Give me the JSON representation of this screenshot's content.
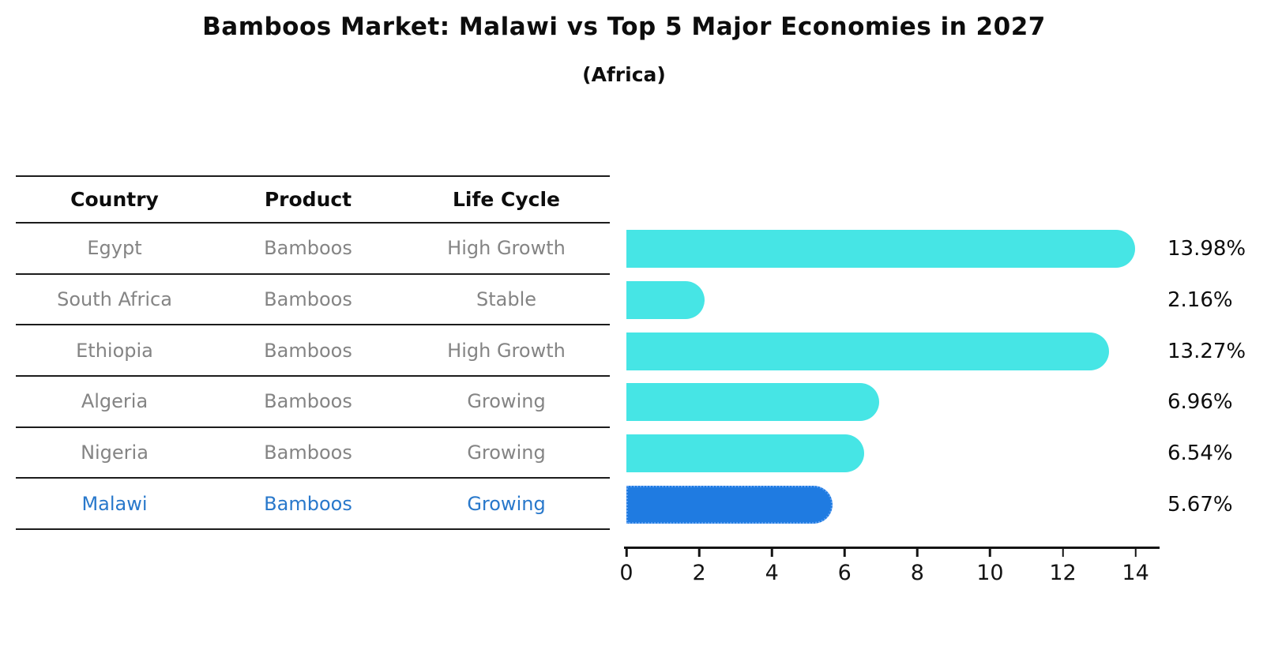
{
  "title": "Bamboos Market: Malawi vs Top 5 Major Economies in 2027",
  "subtitle": "(Africa)",
  "table": {
    "headers": [
      "Country",
      "Product",
      "Life Cycle"
    ],
    "rows": [
      {
        "country": "Egypt",
        "product": "Bamboos",
        "life_cycle": "High Growth"
      },
      {
        "country": "South Africa",
        "product": "Bamboos",
        "life_cycle": "Stable"
      },
      {
        "country": "Ethiopia",
        "product": "Bamboos",
        "life_cycle": "High Growth"
      },
      {
        "country": "Algeria",
        "product": "Bamboos",
        "life_cycle": "Growing"
      },
      {
        "country": "Nigeria",
        "product": "Bamboos",
        "life_cycle": "Growing"
      },
      {
        "country": "Malawi",
        "product": "Bamboos",
        "life_cycle": "Growing"
      }
    ]
  },
  "chart_data": {
    "type": "bar",
    "orientation": "horizontal",
    "title": "Bamboos Market: Malawi vs Top 5 Major Economies in 2027",
    "subtitle": "(Africa)",
    "categories": [
      "Egypt",
      "South Africa",
      "Ethiopia",
      "Algeria",
      "Nigeria",
      "Malawi"
    ],
    "values": [
      13.98,
      2.16,
      13.27,
      6.96,
      6.54,
      5.67
    ],
    "value_labels": [
      "13.98%",
      "2.16%",
      "13.27%",
      "6.96%",
      "6.54%",
      "5.67%"
    ],
    "x_ticks": [
      "0",
      "2",
      "4",
      "6",
      "8",
      "10",
      "12",
      "14"
    ],
    "xlim": [
      0,
      14.66
    ],
    "highlight_index": 5,
    "grid": false,
    "legend": "none"
  },
  "colors": {
    "bar": "#46E5E5",
    "highlight_bar": "#1F7BE1",
    "highlight_bar_border": "#5DA0F2",
    "highlight_text": "#2878CB",
    "table_text": "#848484",
    "axis": "#141414"
  }
}
